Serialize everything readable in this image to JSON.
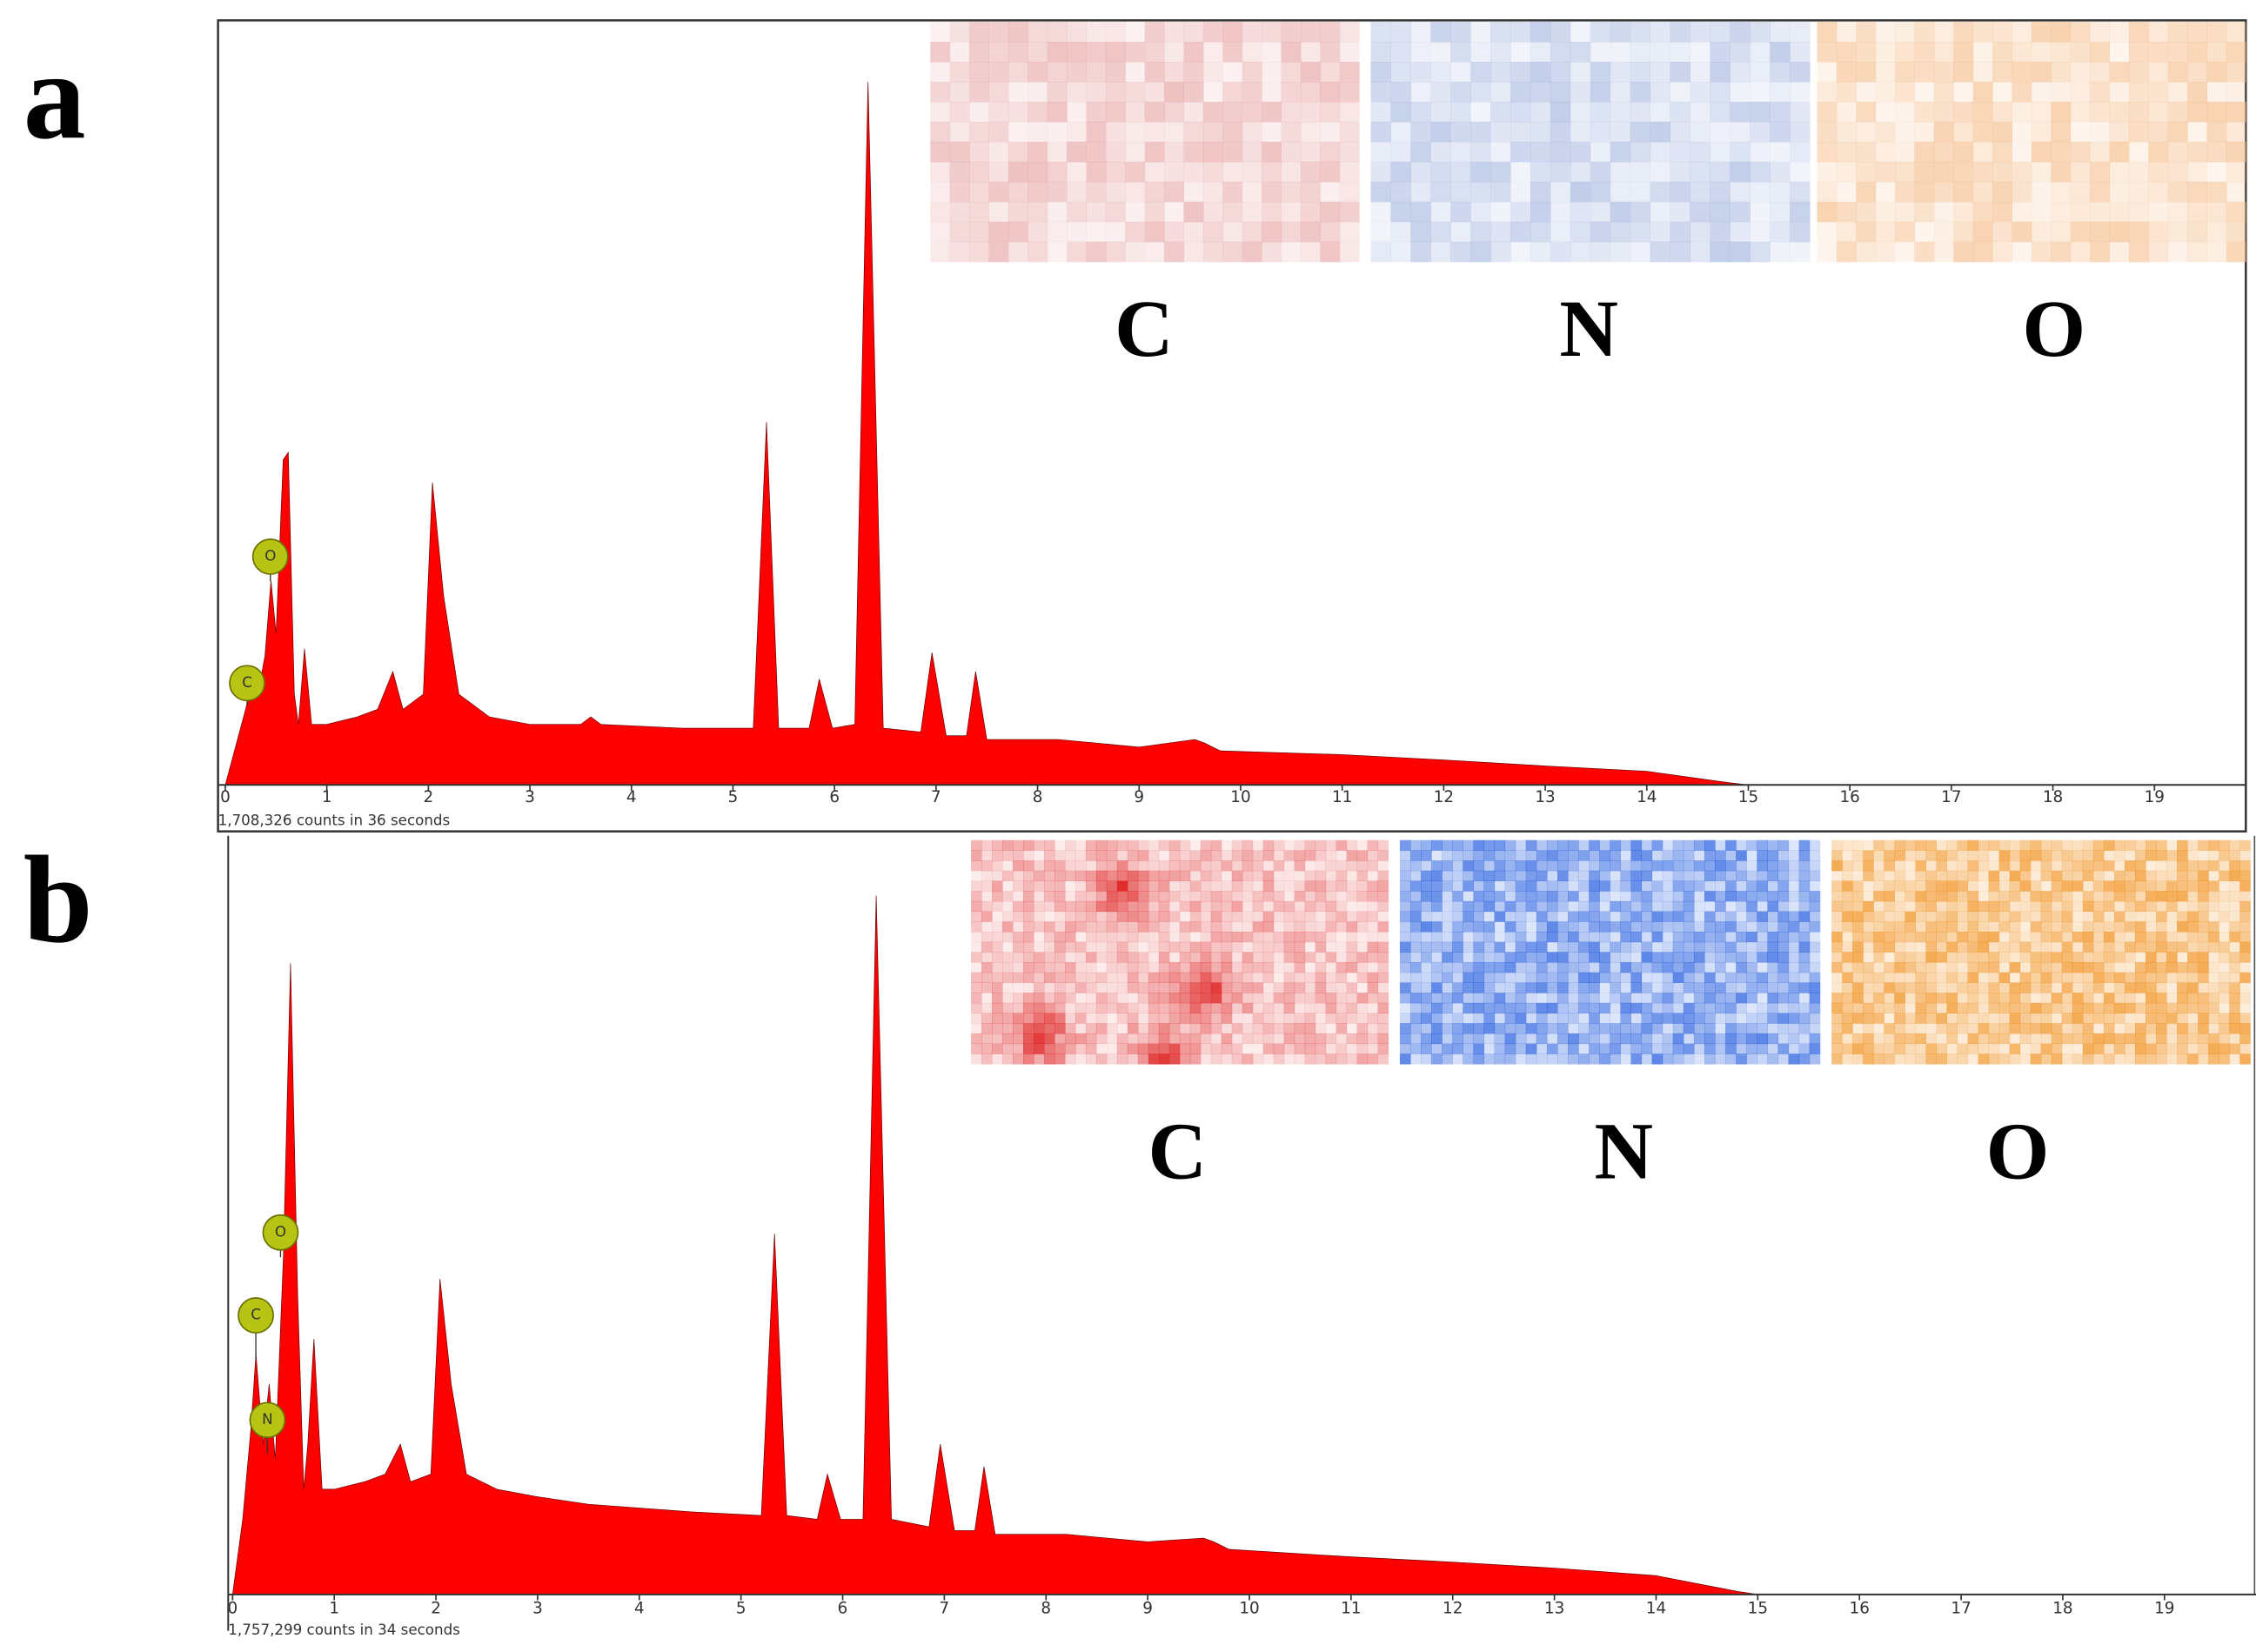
{
  "chart_data": [
    {
      "type": "area",
      "panel_label": "a",
      "color": "#ff0000",
      "x": [
        0,
        0.1,
        0.2,
        0.27,
        0.32,
        0.39,
        0.45,
        0.5,
        0.57,
        0.62,
        0.68,
        0.72,
        0.78,
        0.85,
        1.0,
        1.3,
        1.5,
        1.65,
        1.75,
        1.95,
        2.04,
        2.15,
        2.3,
        2.6,
        3.0,
        3.5,
        3.6,
        3.7,
        4.5,
        5.2,
        5.33,
        5.45,
        5.75,
        5.85,
        5.98,
        6.2,
        6.33,
        6.48,
        6.85,
        6.96,
        7.1,
        7.3,
        7.39,
        7.5,
        8.2,
        9.0,
        9.55,
        9.65,
        9.8,
        11,
        12,
        13,
        14,
        14.8,
        15,
        19.9
      ],
      "values": [
        0,
        5,
        10,
        14,
        12,
        17,
        27,
        20,
        43,
        44,
        12,
        8,
        18,
        8,
        8,
        9,
        10,
        15,
        10,
        12,
        40,
        25,
        12,
        9,
        8,
        8,
        9,
        8,
        7.5,
        7.5,
        48,
        7.5,
        7.5,
        14,
        7.5,
        8,
        93,
        7.5,
        7,
        17.5,
        6.5,
        6.5,
        15,
        6,
        6,
        5,
        6,
        5.5,
        4.5,
        4,
        3.3,
        2.5,
        1.8,
        0.3,
        0,
        0
      ],
      "xlim": [
        0,
        19.9
      ],
      "ylim": [
        0,
        100
      ],
      "xticks": [
        0,
        1,
        2,
        3,
        4,
        5,
        6,
        7,
        8,
        9,
        10,
        11,
        12,
        13,
        14,
        15,
        16,
        17,
        18,
        19
      ],
      "counts_text": "1,708,326 counts in 36 seconds",
      "peak_labels": [
        "O",
        "C"
      ],
      "maps": [
        {
          "label": "C",
          "color": "#e8a8a8"
        },
        {
          "label": "N",
          "color": "#a8b8e0"
        },
        {
          "label": "O",
          "color": "#f5c090"
        }
      ]
    },
    {
      "type": "area",
      "panel_label": "b",
      "color": "#ff0000",
      "x": [
        0,
        0.1,
        0.18,
        0.23,
        0.3,
        0.36,
        0.42,
        0.5,
        0.57,
        0.64,
        0.7,
        0.74,
        0.8,
        0.88,
        1.0,
        1.3,
        1.5,
        1.65,
        1.75,
        1.95,
        2.04,
        2.15,
        2.3,
        2.6,
        3.0,
        3.5,
        4.5,
        5.2,
        5.33,
        5.45,
        5.75,
        5.85,
        5.98,
        6.2,
        6.33,
        6.48,
        6.85,
        6.96,
        7.1,
        7.3,
        7.39,
        7.5,
        8.2,
        9.0,
        9.55,
        9.65,
        9.8,
        11,
        12,
        13,
        14,
        14.8,
        15,
        19.9
      ],
      "values": [
        0,
        10,
        22,
        32,
        20,
        28,
        18,
        45,
        84,
        40,
        14,
        20,
        34,
        14,
        14,
        15,
        16,
        20,
        15,
        16,
        42,
        28,
        16,
        14,
        13,
        12,
        11,
        10.5,
        48,
        10.5,
        10,
        16,
        10,
        10,
        93,
        10,
        9,
        20,
        8.5,
        8.5,
        17,
        8,
        8,
        7,
        7.5,
        7,
        6,
        5,
        4.3,
        3.5,
        2.5,
        0.4,
        0,
        0
      ],
      "xlim": [
        0,
        19.9
      ],
      "ylim": [
        0,
        100
      ],
      "xticks": [
        0,
        1,
        2,
        3,
        4,
        5,
        6,
        7,
        8,
        9,
        10,
        11,
        12,
        13,
        14,
        15,
        16,
        17,
        18,
        19
      ],
      "counts_text": "1,757,299 counts in 34 seconds",
      "peak_labels": [
        "O",
        "C",
        "N"
      ],
      "maps": [
        {
          "label": "C",
          "color": "#e02828"
        },
        {
          "label": "N",
          "color": "#1a55dd"
        },
        {
          "label": "O",
          "color": "#f08a10"
        }
      ]
    }
  ]
}
